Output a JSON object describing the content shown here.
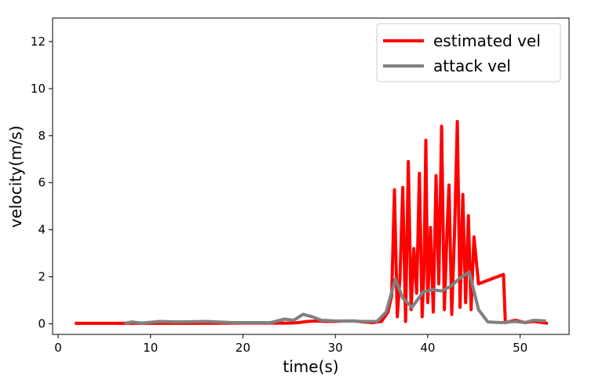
{
  "chart_data": {
    "type": "line",
    "title": "",
    "xlabel": "time(s)",
    "ylabel": "velocity(m/s)",
    "xlim": [
      -0.6,
      55.3
    ],
    "ylim": [
      -0.45,
      13.0
    ],
    "xticks": [
      0,
      10,
      20,
      30,
      40,
      50
    ],
    "yticks": [
      0,
      2,
      4,
      6,
      8,
      10,
      12
    ],
    "grid": false,
    "legend_position": "top-right",
    "series": [
      {
        "name": "estimated vel",
        "color": "#ff0000",
        "points": [
          [
            1.8,
            0.02
          ],
          [
            5,
            0.02
          ],
          [
            10,
            0.02
          ],
          [
            15,
            0.02
          ],
          [
            20,
            0.03
          ],
          [
            25,
            0.03
          ],
          [
            26,
            0.05
          ],
          [
            27,
            0.1
          ],
          [
            28,
            0.12
          ],
          [
            29,
            0.1
          ],
          [
            30,
            0.1
          ],
          [
            31,
            0.12
          ],
          [
            32,
            0.12
          ],
          [
            33,
            0.08
          ],
          [
            34,
            0.05
          ],
          [
            35,
            0.1
          ],
          [
            35.7,
            0.5
          ],
          [
            36.1,
            1.2
          ],
          [
            36.4,
            5.7
          ],
          [
            36.7,
            0.3
          ],
          [
            37.0,
            2.0
          ],
          [
            37.3,
            5.8
          ],
          [
            37.6,
            0.1
          ],
          [
            37.9,
            6.9
          ],
          [
            38.2,
            0.6
          ],
          [
            38.5,
            3.2
          ],
          [
            38.8,
            1.3
          ],
          [
            39.1,
            6.4
          ],
          [
            39.4,
            0.3
          ],
          [
            39.6,
            2.3
          ],
          [
            39.8,
            7.8
          ],
          [
            40.0,
            0.9
          ],
          [
            40.3,
            4.1
          ],
          [
            40.6,
            0.5
          ],
          [
            40.9,
            6.3
          ],
          [
            41.2,
            1.7
          ],
          [
            41.5,
            8.4
          ],
          [
            41.8,
            0.6
          ],
          [
            42.1,
            4.0
          ],
          [
            42.3,
            5.9
          ],
          [
            42.6,
            0.4
          ],
          [
            42.9,
            3.8
          ],
          [
            43.2,
            8.6
          ],
          [
            43.5,
            0.7
          ],
          [
            43.8,
            5.5
          ],
          [
            44.1,
            0.9
          ],
          [
            44.4,
            4.6
          ],
          [
            44.7,
            0.6
          ],
          [
            45.0,
            3.7
          ],
          [
            45.5,
            1.7
          ],
          [
            48.2,
            2.1
          ],
          [
            48.4,
            0.05
          ],
          [
            49.5,
            0.15
          ],
          [
            50.5,
            0.05
          ],
          [
            51.5,
            0.1
          ],
          [
            53.0,
            0.02
          ]
        ]
      },
      {
        "name": "attack vel",
        "color": "#808080",
        "points": [
          [
            7.2,
            0.02
          ],
          [
            8,
            0.08
          ],
          [
            9,
            0.03
          ],
          [
            11,
            0.1
          ],
          [
            13,
            0.08
          ],
          [
            16,
            0.1
          ],
          [
            19,
            0.05
          ],
          [
            21,
            0.05
          ],
          [
            23,
            0.05
          ],
          [
            24.5,
            0.2
          ],
          [
            25.5,
            0.15
          ],
          [
            26.5,
            0.4
          ],
          [
            27.5,
            0.3
          ],
          [
            28.5,
            0.15
          ],
          [
            30,
            0.12
          ],
          [
            31.5,
            0.12
          ],
          [
            33,
            0.1
          ],
          [
            34.5,
            0.1
          ],
          [
            35.5,
            0.5
          ],
          [
            36.5,
            1.9
          ],
          [
            37.3,
            1.1
          ],
          [
            38.3,
            0.7
          ],
          [
            39.5,
            1.35
          ],
          [
            40.5,
            1.45
          ],
          [
            41.5,
            1.4
          ],
          [
            42.5,
            1.6
          ],
          [
            43.5,
            1.95
          ],
          [
            44.5,
            2.2
          ],
          [
            45.5,
            0.6
          ],
          [
            46.5,
            0.08
          ],
          [
            48,
            0.05
          ],
          [
            49.5,
            0.1
          ],
          [
            50.5,
            0.05
          ],
          [
            51.5,
            0.15
          ],
          [
            52.8,
            0.12
          ]
        ]
      }
    ]
  }
}
